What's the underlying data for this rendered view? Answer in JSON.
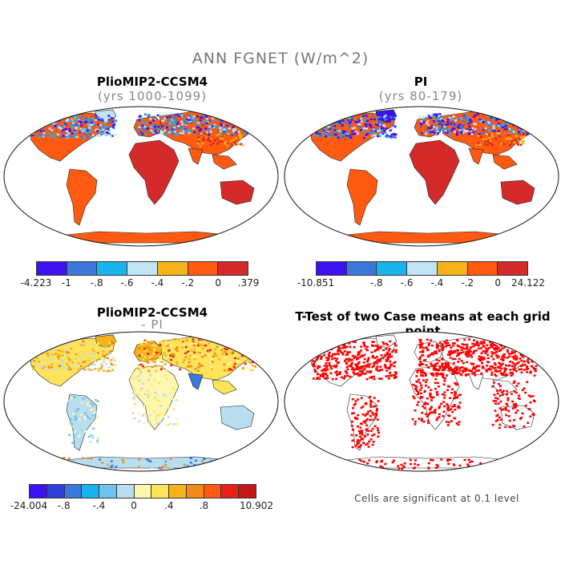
{
  "title": "ANN FGNET (W/m^2)",
  "panels": [
    {
      "title": "PlioMIP2-CCSM4",
      "subtitle": "(yrs 1000-1099)"
    },
    {
      "title": "PI",
      "subtitle": "(yrs 80-179)"
    },
    {
      "title": "PlioMIP2-CCSM4",
      "subtitle": "- PI"
    },
    {
      "title": "T-Test of two Case means at each grid point",
      "subtitle": ""
    }
  ],
  "colorbars": [
    {
      "colors": [
        "#3d12f0",
        "#3c78dc",
        "#1ab4ec",
        "#c0e4f4",
        "#f6b21a",
        "#ff5a12",
        "#d42a2a"
      ],
      "labels": [
        "-4.223",
        "-1",
        "-.8",
        "-.6",
        "-.4",
        "-.2",
        "0",
        ".379"
      ]
    },
    {
      "colors": [
        "#3d12f0",
        "#3c78dc",
        "#1ab4ec",
        "#c0e4f4",
        "#f6b21a",
        "#ff5a12",
        "#d42a2a"
      ],
      "labels": [
        "-10.851",
        "",
        "-.8",
        "-.6",
        "-.4",
        "-.2",
        "0",
        "24.122"
      ]
    },
    {
      "colors": [
        "#3d12f0",
        "#2d3fd8",
        "#3c78dc",
        "#1ab4ec",
        "#6ec4ee",
        "#b8def0",
        "#fff7b0",
        "#ffe35a",
        "#f6b21a",
        "#f28a18",
        "#ff5a12",
        "#e8221a",
        "#c41818"
      ],
      "labels": [
        "-24.004",
        "",
        "-.8",
        "",
        "-.4",
        "",
        "0",
        "",
        ".4",
        "",
        ".8",
        "",
        "",
        "10.902"
      ]
    }
  ],
  "note": "Cells are significant at 0.1 level"
}
